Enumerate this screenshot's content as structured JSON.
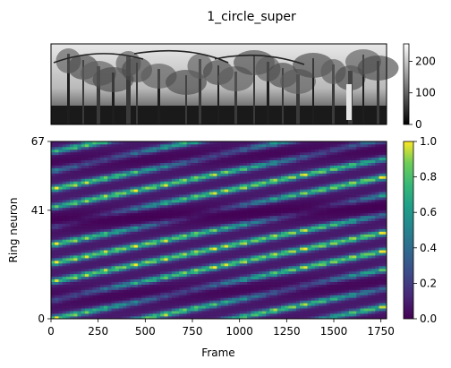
{
  "figure": {
    "title": "1_circle_super"
  },
  "image_panel": {
    "description_hidden": "",
    "colorbar": {
      "ticks": [
        "0",
        "100",
        "200"
      ],
      "range": [
        0,
        255
      ],
      "colormap": "gray"
    }
  },
  "chart_data": {
    "type": "heatmap",
    "title": "1_circle_super",
    "xlabel": "Frame",
    "ylabel": "Ring neuron",
    "xlim": [
      0,
      1780
    ],
    "ylim": [
      0,
      67
    ],
    "x_ticks": [
      0,
      250,
      500,
      750,
      1000,
      1250,
      1500,
      1750
    ],
    "y_ticks": [
      0,
      41,
      67
    ],
    "colormap": "viridis",
    "color_range": [
      0,
      1
    ],
    "colorbar_ticks": [
      "0.0",
      "0.2",
      "0.4",
      "0.6",
      "0.8",
      "1.0"
    ],
    "grid": false,
    "pattern": {
      "stripe_slope_neurons_per_frame": 0.0145,
      "stripe_spacing_neurons": 7,
      "dark_band_centers": [
        37,
        59,
        8
      ],
      "note_hidden": ""
    }
  }
}
